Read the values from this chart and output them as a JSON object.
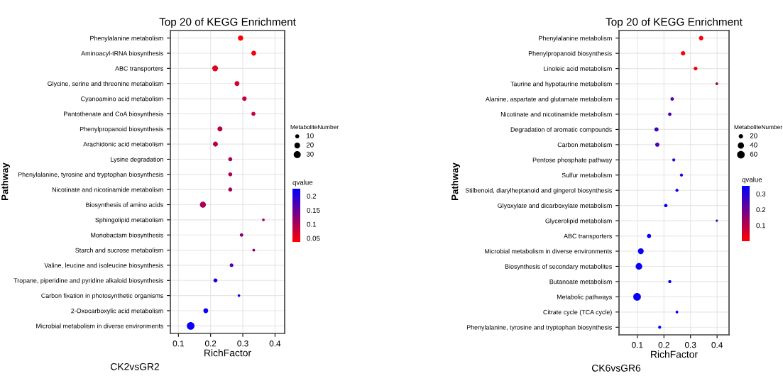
{
  "chart_data": [
    {
      "type": "bubble",
      "title": "Top 20 of KEGG Enrichment",
      "xlabel": "RichFactor",
      "ylabel": "Pathway",
      "legend_title": "MetaboliteNumber",
      "clabel": "qvalue",
      "orientation": "horizontal",
      "grid": true,
      "categories": [
        "Phenylalanine metabolism",
        "Aminoacyl-tRNA biosynthesis",
        "ABC transporters",
        "Glycine, serine and threonine metabolism",
        "Cyanoamino acid metabolism",
        "Pantothenate and CoA biosynthesis",
        "Phenylpropanoid biosynthesis",
        "Arachidonic acid metabolism",
        "Lysine degradation",
        "Phenylalanine, tyrosine and tryptophan biosynthesis",
        "Nicotinate and nicotinamide metabolism",
        "Biosynthesis of amino acids",
        "Sphingolipid metabolism",
        "Monobactam biosynthesis",
        "Starch and sucrose metabolism",
        "Valine, leucine and isoleucine biosynthesis",
        "Tropane, piperidine and pyridine alkaloid biosynthesis",
        "Carbon fixation in photosynthetic organisms",
        "2-Oxocarboxylic acid metabolism",
        "Microbial metabolism in diverse environments"
      ],
      "values": [
        0.293,
        0.334,
        0.214,
        0.282,
        0.305,
        0.333,
        0.229,
        0.215,
        0.261,
        0.261,
        0.261,
        0.176,
        0.364,
        0.296,
        0.334,
        0.265,
        0.215,
        0.288,
        0.185,
        0.138
      ],
      "sizes": [
        17,
        14,
        20,
        14,
        12,
        10,
        15,
        15,
        10,
        10,
        10,
        22,
        4,
        7,
        5,
        8,
        10,
        4,
        14,
        35
      ],
      "size_legend": [
        10,
        20,
        30
      ],
      "cvalues": [
        0.04,
        0.045,
        0.06,
        0.07,
        0.08,
        0.08,
        0.09,
        0.09,
        0.1,
        0.1,
        0.1,
        0.1,
        0.11,
        0.12,
        0.12,
        0.17,
        0.21,
        0.22,
        0.22,
        0.22
      ],
      "clim": [
        0.037,
        0.226
      ],
      "cticks": [
        0.05,
        0.1,
        0.15,
        0.2
      ],
      "xlim": [
        0.075,
        0.43
      ],
      "xticks": [
        0.1,
        0.2,
        0.3,
        0.4
      ],
      "annotations": [
        "CK2vsGR2"
      ]
    },
    {
      "type": "bubble",
      "title": "Top 20 of KEGG Enrichment",
      "xlabel": "RichFactor",
      "ylabel": "Pathway",
      "legend_title": "MetaboliteNumber",
      "clabel": "qvalue",
      "orientation": "horizontal",
      "grid": true,
      "categories": [
        "Phenylalanine metabolism",
        "Phenylpropanoid biosynthesis",
        "Linoleic acid metabolism",
        "Taurine and hypotaurine metabolism",
        "Alanine, aspartate and glutamate metabolism",
        "Nicotinate and nicotinamide metabolism",
        "Degradation of aromatic compounds",
        "Carbon metabolism",
        "Pentose phosphate pathway",
        "Sulfur metabolism",
        "Stilbenoid, diarylheptanoid and gingerol biosynthesis",
        "Glyoxylate and dicarboxylate metabolism",
        "Glycerolipid metabolism",
        "ABC transporters",
        "Microbial metabolism in diverse environments",
        "Biosynthesis of secondary metabolites",
        "Butanoate metabolism",
        "Metabolic pathways",
        "Citrate cycle (TCA cycle)",
        "Phenylalanine, tyrosine and tryptophan biosynthesis"
      ],
      "values": [
        0.34,
        0.272,
        0.319,
        0.399,
        0.231,
        0.222,
        0.172,
        0.175,
        0.237,
        0.266,
        0.249,
        0.207,
        0.399,
        0.144,
        0.113,
        0.106,
        0.222,
        0.099,
        0.249,
        0.184
      ],
      "sizes": [
        20,
        20,
        15,
        8,
        12,
        12,
        18,
        18,
        10,
        10,
        10,
        12,
        5,
        18,
        35,
        45,
        10,
        60,
        8,
        10
      ],
      "size_legend": [
        20,
        40,
        60
      ],
      "cvalues": [
        0.01,
        0.01,
        0.01,
        0.12,
        0.25,
        0.25,
        0.26,
        0.26,
        0.27,
        0.3,
        0.33,
        0.34,
        0.34,
        0.34,
        0.34,
        0.34,
        0.34,
        0.34,
        0.34,
        0.34
      ],
      "clim": [
        0.0,
        0.35
      ],
      "cticks": [
        0.1,
        0.2,
        0.3
      ],
      "xlim": [
        0.031,
        0.445
      ],
      "xticks": [
        0.1,
        0.2,
        0.3,
        0.4
      ],
      "annotations": [
        "CK6vsGR6"
      ]
    }
  ]
}
